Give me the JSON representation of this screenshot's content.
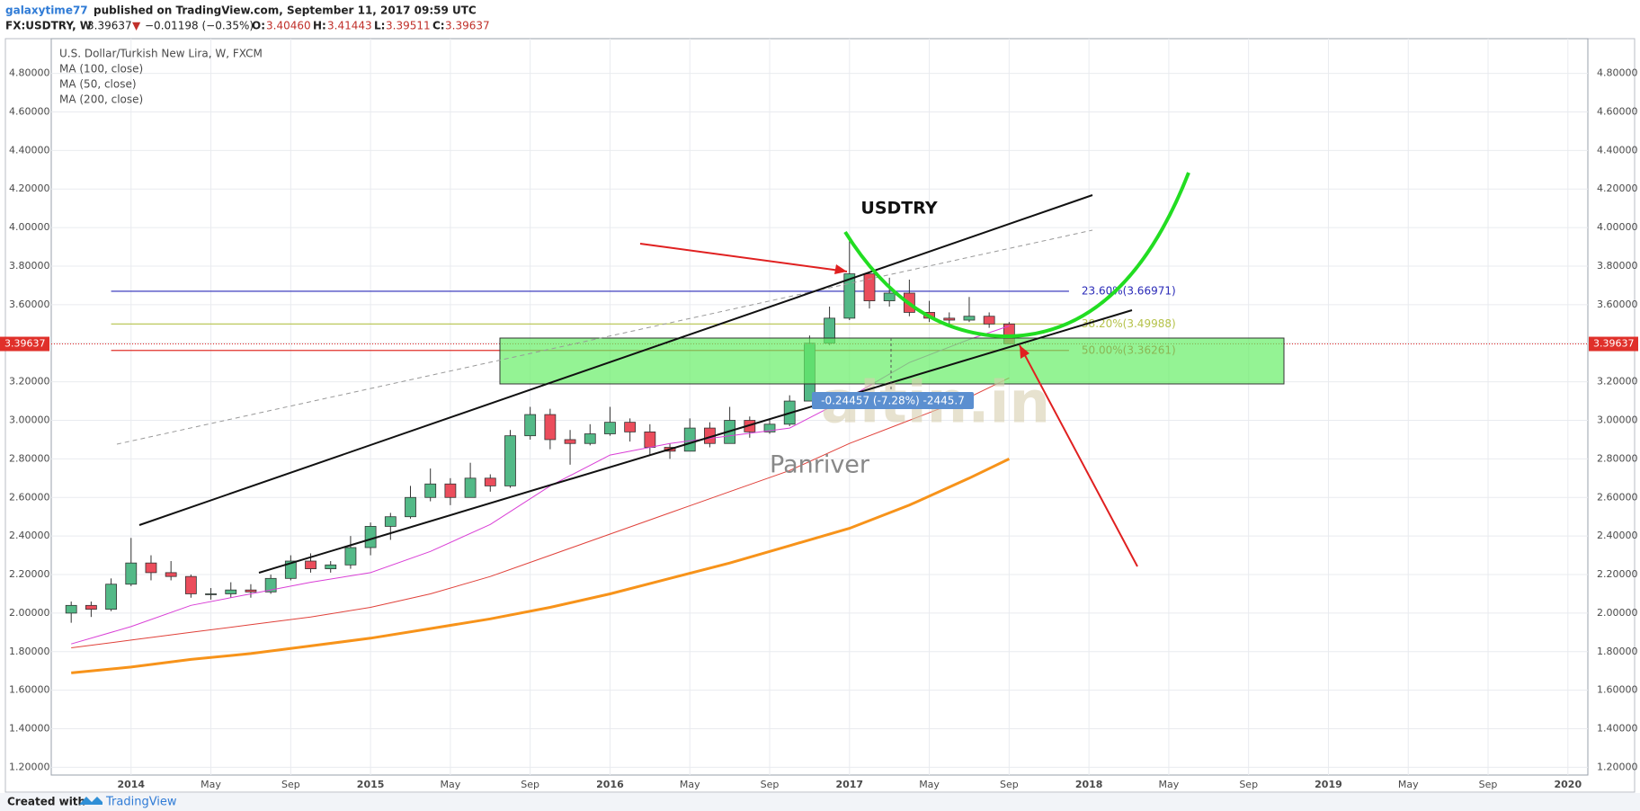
{
  "header": {
    "author": "galaxytime77",
    "published": "published on TradingView.com, September 11, 2017 09:59 UTC",
    "symbol": "FX:USDTRY, W",
    "last": "3.39637",
    "arrow": "▼",
    "change": "−0.01198 (−0.35%)",
    "o_label": "O:",
    "o": "3.40460",
    "h_label": "H:",
    "h": "3.41443",
    "l_label": "L:",
    "l": "3.39511",
    "c_label": "C:",
    "c": "3.39637"
  },
  "chart_data": {
    "type": "candlestick",
    "title": "U.S. Dollar/Turkish New Lira, W, FXCM",
    "symbol_label": "USDTRY",
    "x": [
      "2013-10",
      "2013-11",
      "2013-12",
      "2014-01",
      "2014-02",
      "2014-03",
      "2014-04",
      "2014-05",
      "2014-06",
      "2014-07",
      "2014-08",
      "2014-09",
      "2014-10",
      "2014-11",
      "2014-12",
      "2015-01",
      "2015-02",
      "2015-03",
      "2015-04",
      "2015-05",
      "2015-06",
      "2015-07",
      "2015-08",
      "2015-09",
      "2015-10",
      "2015-11",
      "2015-12",
      "2016-01",
      "2016-02",
      "2016-03",
      "2016-04",
      "2016-05",
      "2016-06",
      "2016-07",
      "2016-08",
      "2016-09",
      "2016-10",
      "2016-11",
      "2016-12",
      "2017-01",
      "2017-02",
      "2017-03",
      "2017-04",
      "2017-05",
      "2017-06",
      "2017-07",
      "2017-08",
      "2017-09"
    ],
    "open": [
      2.0,
      2.04,
      2.02,
      2.15,
      2.26,
      2.21,
      2.19,
      2.1,
      2.1,
      2.12,
      2.11,
      2.18,
      2.27,
      2.23,
      2.25,
      2.34,
      2.45,
      2.5,
      2.6,
      2.67,
      2.6,
      2.7,
      2.66,
      2.92,
      3.03,
      2.9,
      2.88,
      2.93,
      2.99,
      2.94,
      2.86,
      2.84,
      2.96,
      2.88,
      3.0,
      2.94,
      2.98,
      3.1,
      3.4,
      3.53,
      3.76,
      3.62,
      3.66,
      3.56,
      3.53,
      3.52,
      3.54,
      3.5
    ],
    "high": [
      2.06,
      2.06,
      2.18,
      2.39,
      2.3,
      2.27,
      2.2,
      2.13,
      2.16,
      2.15,
      2.2,
      2.3,
      2.31,
      2.27,
      2.4,
      2.47,
      2.52,
      2.66,
      2.75,
      2.7,
      2.78,
      2.72,
      2.95,
      3.07,
      3.06,
      2.95,
      2.98,
      3.07,
      3.01,
      2.98,
      2.88,
      3.01,
      2.99,
      3.07,
      3.02,
      3.01,
      3.13,
      3.44,
      3.59,
      3.94,
      3.76,
      3.74,
      3.73,
      3.62,
      3.56,
      3.64,
      3.56,
      3.51
    ],
    "low": [
      1.95,
      1.98,
      2.01,
      2.14,
      2.17,
      2.17,
      2.08,
      2.07,
      2.08,
      2.08,
      2.1,
      2.17,
      2.21,
      2.21,
      2.23,
      2.3,
      2.38,
      2.49,
      2.58,
      2.56,
      2.6,
      2.63,
      2.65,
      2.9,
      2.85,
      2.77,
      2.87,
      2.92,
      2.89,
      2.82,
      2.8,
      2.84,
      2.86,
      2.88,
      2.91,
      2.93,
      2.97,
      3.1,
      3.39,
      3.52,
      3.58,
      3.59,
      3.54,
      3.51,
      3.49,
      3.51,
      3.48,
      3.39511
    ],
    "close": [
      2.04,
      2.02,
      2.15,
      2.26,
      2.21,
      2.19,
      2.1,
      2.1,
      2.12,
      2.11,
      2.18,
      2.27,
      2.23,
      2.25,
      2.34,
      2.45,
      2.5,
      2.6,
      2.67,
      2.6,
      2.7,
      2.66,
      2.92,
      3.03,
      2.9,
      2.88,
      2.93,
      2.99,
      2.94,
      2.86,
      2.84,
      2.96,
      2.88,
      3.0,
      2.94,
      2.98,
      3.1,
      3.4,
      3.53,
      3.76,
      3.62,
      3.66,
      3.56,
      3.53,
      3.52,
      3.54,
      3.5,
      3.39637
    ],
    "up_color": "#53b987",
    "down_color": "#eb4d5c",
    "series": [
      {
        "name": "MA (100, close)",
        "color": "#e0413a",
        "width": 1,
        "x": [
          "2013-10",
          "2014-01",
          "2014-04",
          "2014-07",
          "2014-10",
          "2015-01",
          "2015-04",
          "2015-07",
          "2015-10",
          "2016-01",
          "2016-04",
          "2016-07",
          "2016-10",
          "2017-01",
          "2017-04",
          "2017-07",
          "2017-09"
        ],
        "values": [
          1.82,
          1.86,
          1.9,
          1.94,
          1.98,
          2.03,
          2.1,
          2.19,
          2.3,
          2.41,
          2.52,
          2.63,
          2.74,
          2.88,
          3.0,
          3.12,
          3.22
        ]
      },
      {
        "name": "MA (50, close)",
        "color": "#d93fd6",
        "width": 1,
        "x": [
          "2013-10",
          "2014-01",
          "2014-04",
          "2014-07",
          "2014-10",
          "2015-01",
          "2015-04",
          "2015-07",
          "2015-10",
          "2016-01",
          "2016-04",
          "2016-07",
          "2016-10",
          "2017-01",
          "2017-04",
          "2017-07",
          "2017-09"
        ],
        "values": [
          1.84,
          1.93,
          2.04,
          2.1,
          2.16,
          2.21,
          2.32,
          2.46,
          2.66,
          2.82,
          2.88,
          2.92,
          2.96,
          3.12,
          3.3,
          3.42,
          3.49
        ]
      },
      {
        "name": "MA (200, close)",
        "color": "#f7931a",
        "width": 3,
        "x": [
          "2013-10",
          "2014-01",
          "2014-04",
          "2014-07",
          "2014-10",
          "2015-01",
          "2015-04",
          "2015-07",
          "2015-10",
          "2016-01",
          "2016-04",
          "2016-07",
          "2016-10",
          "2017-01",
          "2017-04",
          "2017-07",
          "2017-09"
        ],
        "values": [
          1.69,
          1.72,
          1.76,
          1.79,
          1.83,
          1.87,
          1.92,
          1.97,
          2.03,
          2.1,
          2.18,
          2.26,
          2.35,
          2.44,
          2.56,
          2.7,
          2.8
        ]
      }
    ],
    "fib_levels": [
      {
        "label": "23.60%(3.66971)",
        "value": 3.66971,
        "color": "#2a2ab8"
      },
      {
        "label": "38.20%(3.49988)",
        "value": 3.49988,
        "color": "#b5c24a"
      },
      {
        "label": "50.00%(3.36261)",
        "value": 3.36261,
        "color": "#e0302a"
      }
    ],
    "fib_start": "2013-12",
    "fib_end": "2017-12",
    "last_price": 3.39637,
    "measure_label": "-0.24457 (-7.28%) -2445.7",
    "watermark": "altin.in",
    "watermark_sub": "Panriver",
    "xlim": [
      "2013-09",
      "2020-02"
    ],
    "xticks": [
      {
        "value": "2014-01",
        "label": "2014"
      },
      {
        "value": "2014-05",
        "label": "May"
      },
      {
        "value": "2014-09",
        "label": "Sep"
      },
      {
        "value": "2015-01",
        "label": "2015"
      },
      {
        "value": "2015-05",
        "label": "May"
      },
      {
        "value": "2015-09",
        "label": "Sep"
      },
      {
        "value": "2016-01",
        "label": "2016"
      },
      {
        "value": "2016-05",
        "label": "May"
      },
      {
        "value": "2016-09",
        "label": "Sep"
      },
      {
        "value": "2017-01",
        "label": "2017"
      },
      {
        "value": "2017-05",
        "label": "May"
      },
      {
        "value": "2017-09",
        "label": "Sep"
      },
      {
        "value": "2018-01",
        "label": "2018"
      },
      {
        "value": "2018-05",
        "label": "May"
      },
      {
        "value": "2018-09",
        "label": "Sep"
      },
      {
        "value": "2019-01",
        "label": "2019"
      },
      {
        "value": "2019-05",
        "label": "May"
      },
      {
        "value": "2019-09",
        "label": "Sep"
      },
      {
        "value": "2020-01",
        "label": "2020"
      }
    ],
    "ylim": [
      1.16,
      4.98
    ],
    "yticks": [
      {
        "value": 1.2,
        "label": "1.20000"
      },
      {
        "value": 1.4,
        "label": "1.40000"
      },
      {
        "value": 1.6,
        "label": "1.60000"
      },
      {
        "value": 1.8,
        "label": "1.80000"
      },
      {
        "value": 2.0,
        "label": "2.00000"
      },
      {
        "value": 2.2,
        "label": "2.20000"
      },
      {
        "value": 2.4,
        "label": "2.40000"
      },
      {
        "value": 2.6,
        "label": "2.60000"
      },
      {
        "value": 2.8,
        "label": "2.80000"
      },
      {
        "value": 3.0,
        "label": "3.00000"
      },
      {
        "value": 3.2,
        "label": "3.20000"
      },
      {
        "value": 3.4,
        "label": "3.40000"
      },
      {
        "value": 3.6,
        "label": "3.60000"
      },
      {
        "value": 3.8,
        "label": "3.80000"
      },
      {
        "value": 4.0,
        "label": "4.00000"
      },
      {
        "value": 4.2,
        "label": "4.20000"
      },
      {
        "value": 4.4,
        "label": "4.40000"
      },
      {
        "value": 4.6,
        "label": "4.60000"
      },
      {
        "value": 4.8,
        "label": "4.80000"
      }
    ],
    "grid": true
  },
  "footer": {
    "created": "Created with",
    "brand": "TradingView"
  }
}
